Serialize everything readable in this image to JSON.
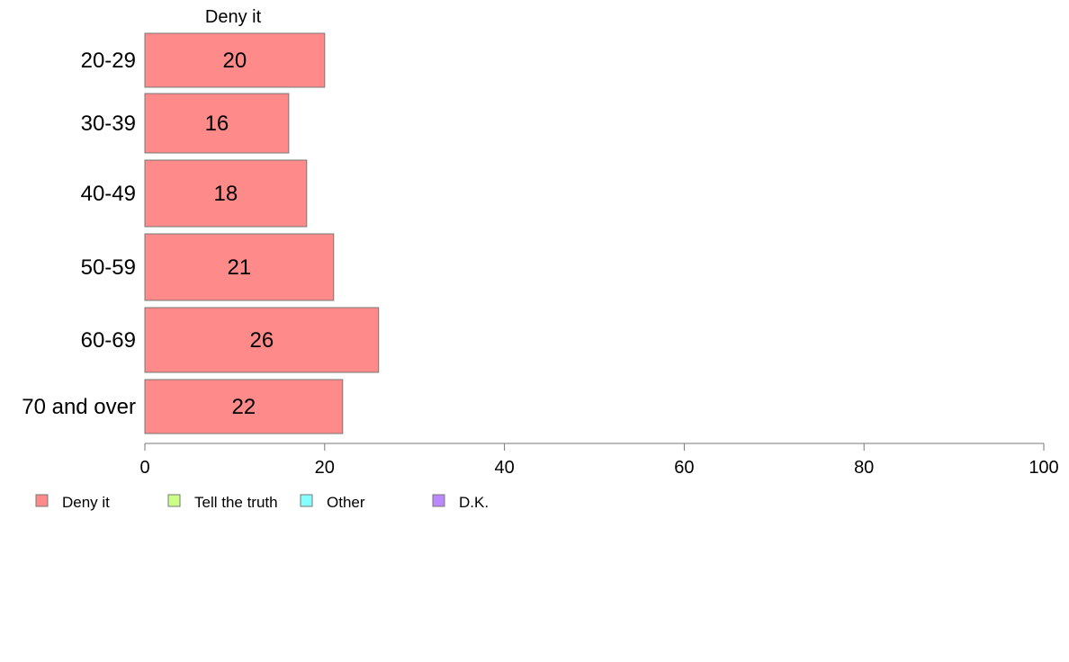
{
  "chart_data": {
    "type": "bar",
    "orientation": "horizontal",
    "panel_title": "Deny it",
    "categories": [
      "20-29",
      "30-39",
      "40-49",
      "50-59",
      "60-69",
      "70 and over"
    ],
    "series": [
      {
        "name": "Deny it",
        "values": [
          20,
          16,
          18,
          21,
          26,
          22
        ],
        "color": "#ff8a8a"
      }
    ],
    "xlim": [
      0,
      100
    ],
    "xticks": [
      "0",
      "20",
      "40",
      "60",
      "80",
      "100"
    ],
    "legend": [
      {
        "label": "Deny it",
        "color": "#ff8a8a"
      },
      {
        "label": "Tell the truth",
        "color": "#ccff88"
      },
      {
        "label": "Other",
        "color": "#88ffff"
      },
      {
        "label": "D.K.",
        "color": "#bb88ff"
      }
    ],
    "legend_position": "bottom-left",
    "grid": false
  }
}
